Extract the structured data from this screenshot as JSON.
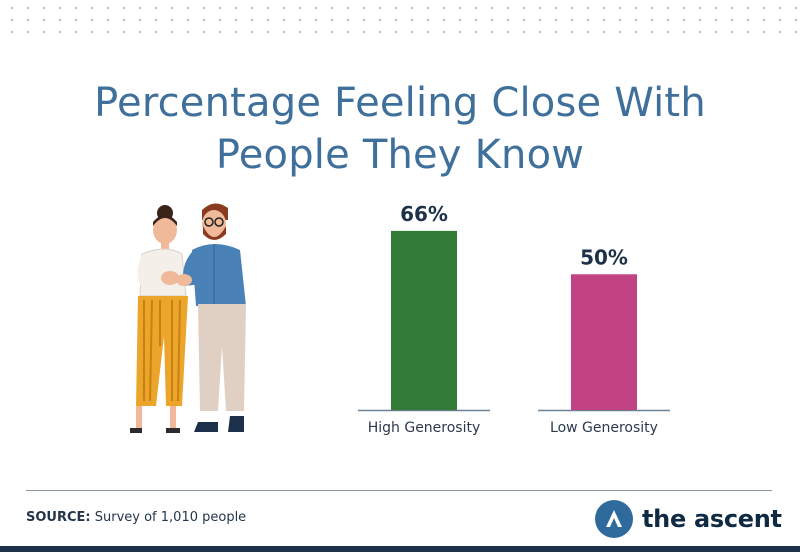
{
  "header": {
    "title_line1": "Percentage Feeling Close With",
    "title_line2": "People They Know"
  },
  "chart_data": {
    "type": "bar",
    "title": "Percentage Feeling Close With People They Know",
    "categories": [
      "High Generosity",
      "Low Generosity"
    ],
    "values": [
      66,
      50
    ],
    "value_labels": [
      "66%",
      "50%"
    ],
    "colors": [
      "#317a37",
      "#c04282"
    ],
    "ylim": [
      0,
      70
    ],
    "grid": false,
    "legend": "none"
  },
  "footer": {
    "source_label": "SOURCE:",
    "source_text": "Survey of 1,010 people",
    "brand_name": "the ascent"
  },
  "icons": {
    "illustration": "people-hug-illustration-icon",
    "brand": "ascent-logo-icon"
  },
  "colors": {
    "title": "#3f6f9b",
    "brand_blue": "#2f6a9c",
    "bottom_bar": "#1d3248"
  }
}
